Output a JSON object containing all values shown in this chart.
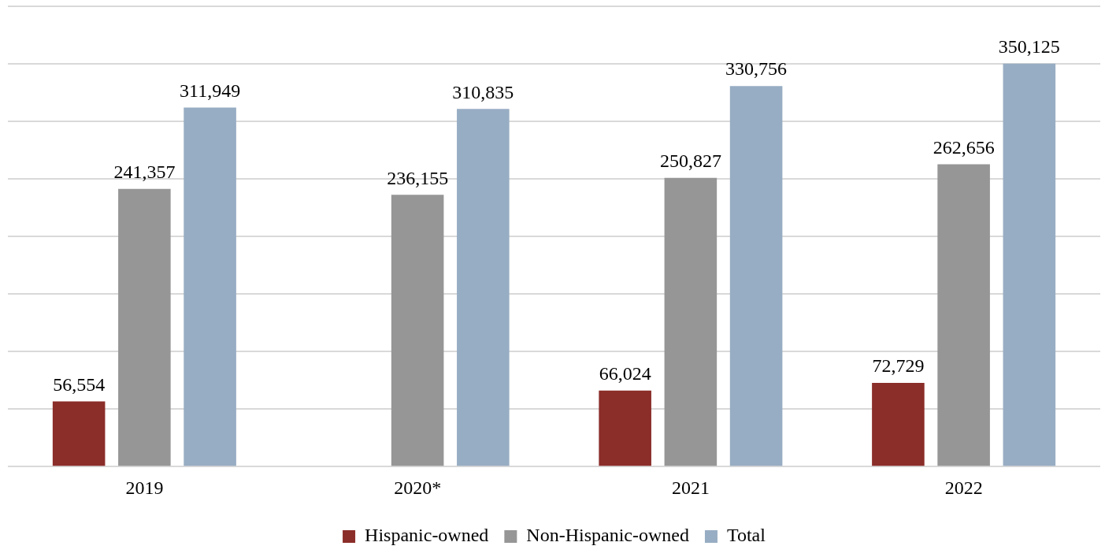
{
  "chart_data": {
    "type": "bar",
    "categories": [
      "2019",
      "2020*",
      "2021",
      "2022"
    ],
    "series": [
      {
        "name": "Hispanic-owned",
        "color": "#8b2d29",
        "values": [
          56554,
          null,
          66024,
          72729
        ],
        "value_labels": [
          "56,554",
          null,
          "66,024",
          "72,729"
        ]
      },
      {
        "name": "Non-Hispanic-owned",
        "color": "#969696",
        "values": [
          241357,
          236155,
          250827,
          262656
        ],
        "value_labels": [
          "241,357",
          "236,155",
          "250,827",
          "262,656"
        ]
      },
      {
        "name": "Total",
        "color": "#97adc3",
        "values": [
          311949,
          310835,
          330756,
          350125
        ],
        "value_labels": [
          "311,949",
          "310,835",
          "330,756",
          "350,125"
        ]
      }
    ],
    "ylim": [
      0,
      400000
    ],
    "yticks": [
      {
        "value": 0,
        "label": null
      },
      {
        "value": 50000,
        "label": null
      },
      {
        "value": 100000,
        "label": null
      },
      {
        "value": 150000,
        "label": null
      },
      {
        "value": 200000,
        "label": null
      },
      {
        "value": 250000,
        "label": null
      },
      {
        "value": 300000,
        "label": null
      },
      {
        "value": 350000,
        "label": null
      },
      {
        "value": 400000,
        "label": null
      }
    ],
    "tick_labels": "x",
    "grid": "y",
    "legend": "bottom"
  }
}
